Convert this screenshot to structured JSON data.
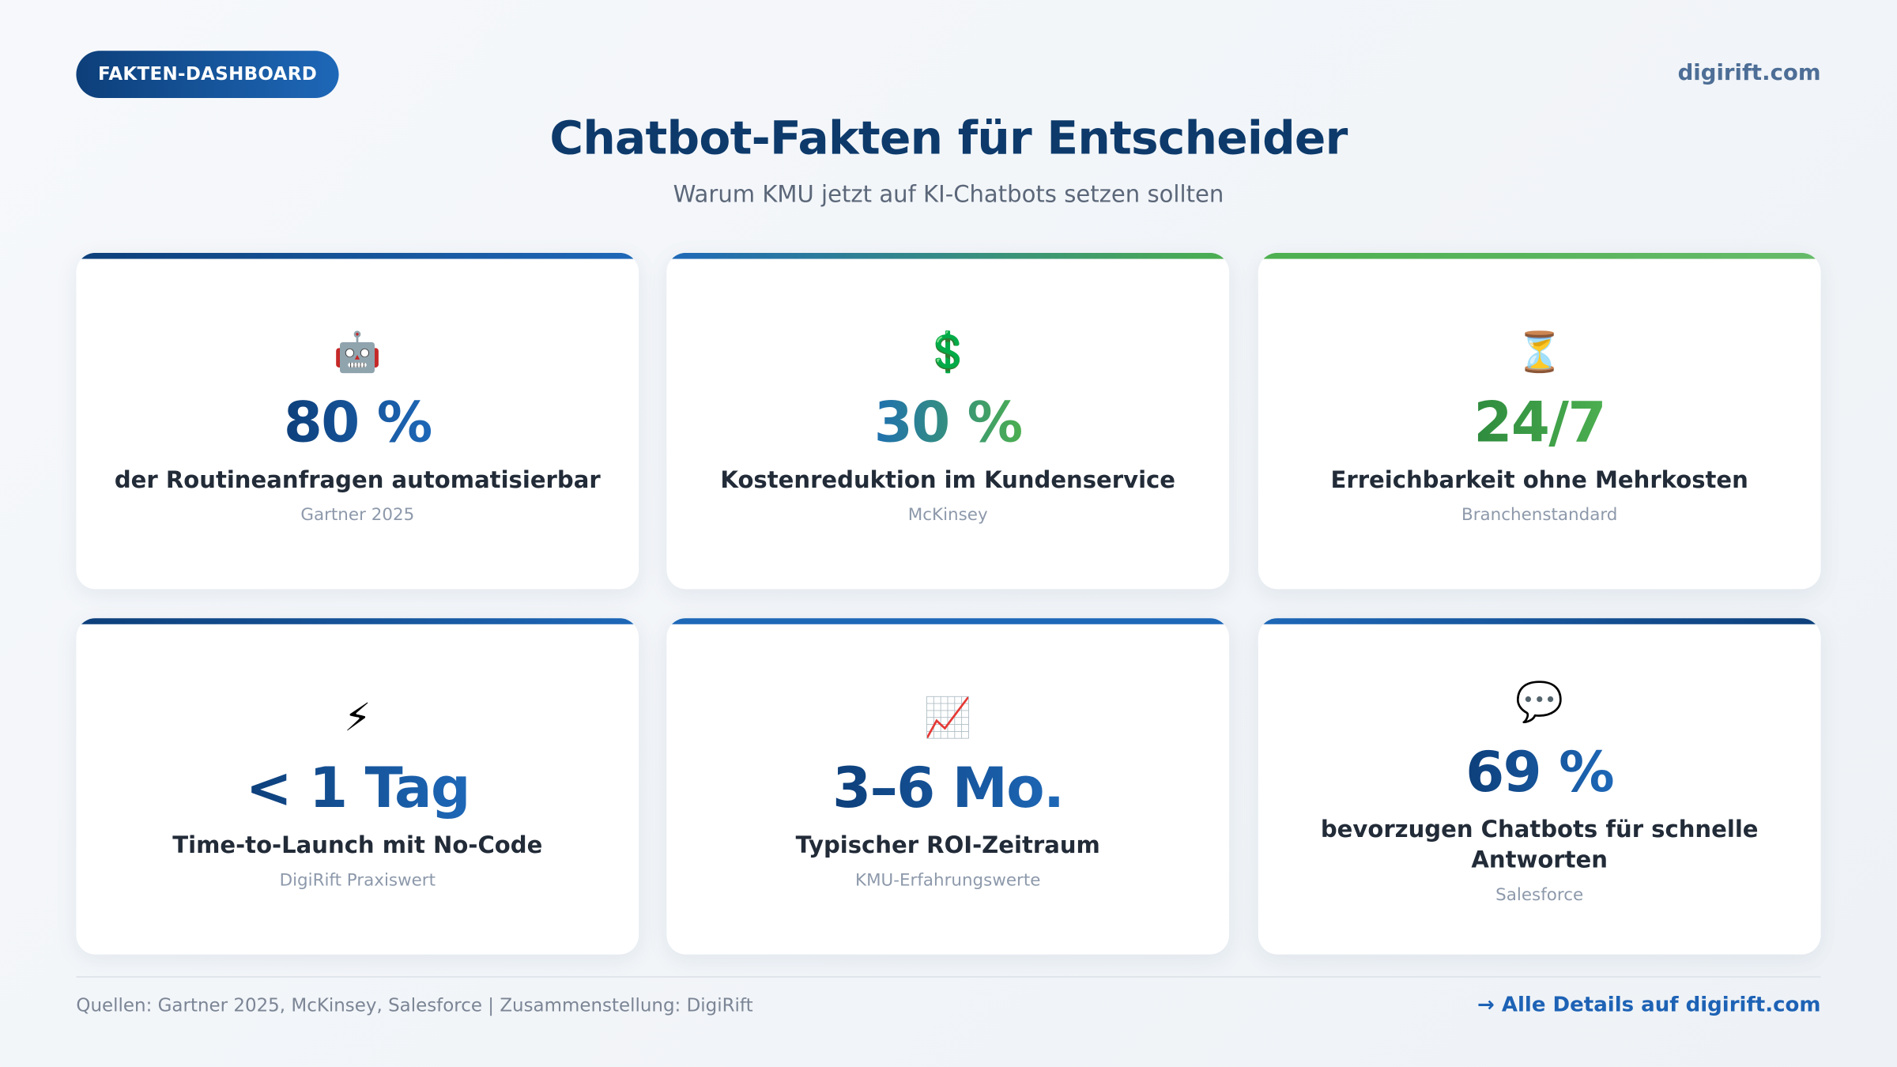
{
  "header": {
    "badge": "FAKTEN-DASHBOARD",
    "site": "digirift.com",
    "title": "Chatbot-Fakten für Entscheider",
    "subtitle": "Warum KMU jetzt auf KI-Chatbots setzen sollten"
  },
  "cards": [
    {
      "icon": "🤖",
      "icon_name": "robot-icon",
      "value": "80 %",
      "desc": "der Routineanfragen automatisierbar",
      "source": "Gartner 2025",
      "bar": [
        "#0d3f7a",
        "#1e68b8"
      ],
      "grad": [
        "#0d3f7a",
        "#1e68b8"
      ]
    },
    {
      "icon": "💲",
      "icon_name": "dollar-icon",
      "value": "30 %",
      "desc": "Kostenreduktion im Kundenservice",
      "source": "McKinsey",
      "bar": [
        "#1e68b8",
        "#4caf50"
      ],
      "grad": [
        "#1e6fb0",
        "#4caf50"
      ]
    },
    {
      "icon": "⏳",
      "icon_name": "hourglass-icon",
      "value": "24/7",
      "desc": "Erreichbarkeit ohne Mehrkosten",
      "source": "Branchenstandard",
      "bar": [
        "#4caf50",
        "#66bb6a"
      ],
      "grad": [
        "#2e8b3e",
        "#4caf50"
      ]
    },
    {
      "icon": "⚡",
      "icon_name": "lightning-icon",
      "value": "< 1 Tag",
      "desc": "Time-to-Launch mit No-Code",
      "source": "DigiRift Praxiswert",
      "bar": [
        "#0d3f7a",
        "#1e68b8"
      ],
      "grad": [
        "#0d3f7a",
        "#1e68b8"
      ]
    },
    {
      "icon": "📈",
      "icon_name": "chart-increasing-icon",
      "value": "3–6 Mo.",
      "desc": "Typischer ROI-Zeitraum",
      "source": "KMU-Erfahrungswerte",
      "bar": [
        "#1e68b8",
        "#1e68b8"
      ],
      "grad": [
        "#0d3f7a",
        "#1e68b8"
      ]
    },
    {
      "icon": "💬",
      "icon_name": "speech-bubble-icon",
      "value": "69 %",
      "desc": "bevorzugen Chatbots für schnelle Antworten",
      "source": "Salesforce",
      "bar": [
        "#1e68b8",
        "#0d3f7a"
      ],
      "grad": [
        "#0d3f7a",
        "#1e68b8"
      ]
    }
  ],
  "footer": {
    "sources": "Quellen: Gartner 2025, McKinsey, Salesforce | Zusammenstellung: DigiRift",
    "link": "→ Alle Details auf digirift.com"
  }
}
